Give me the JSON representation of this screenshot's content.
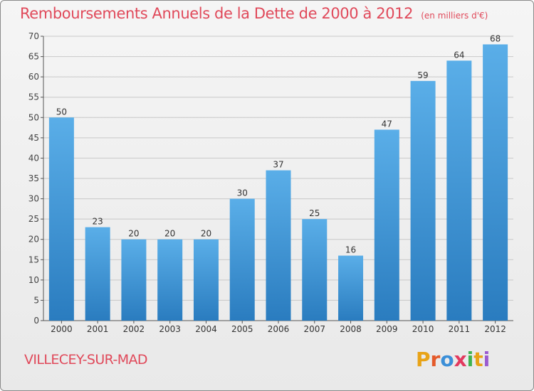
{
  "title": "Remboursements Annuels de la Dette de 2000 à 2012",
  "subtitle": "(en milliers d'€)",
  "place_name": "VILLECEY-SUR-MAD",
  "brand": "Proxiti",
  "colors": {
    "bar_top": "#5aaee8",
    "bar_bottom": "#2a7cbf",
    "accent": "#e0495a",
    "grid": "#c8c8c8",
    "logo": [
      "#e8a317",
      "#e45a2a",
      "#3b8fd8",
      "#e23a5f",
      "#3fb34f",
      "#e8a317",
      "#9a5bd0"
    ]
  },
  "chart_data": {
    "type": "bar",
    "title": "Remboursements Annuels de la Dette de 2000 à 2012",
    "xlabel": "",
    "ylabel": "",
    "categories": [
      "2000",
      "2001",
      "2002",
      "2003",
      "2004",
      "2005",
      "2006",
      "2007",
      "2008",
      "2009",
      "2010",
      "2011",
      "2012"
    ],
    "values": [
      50,
      23,
      20,
      20,
      20,
      30,
      37,
      25,
      16,
      47,
      59,
      64,
      68
    ],
    "ylim": [
      0,
      70
    ],
    "yticks": [
      0,
      5,
      10,
      15,
      20,
      25,
      30,
      35,
      40,
      45,
      50,
      55,
      60,
      65,
      70
    ],
    "grid": true
  }
}
